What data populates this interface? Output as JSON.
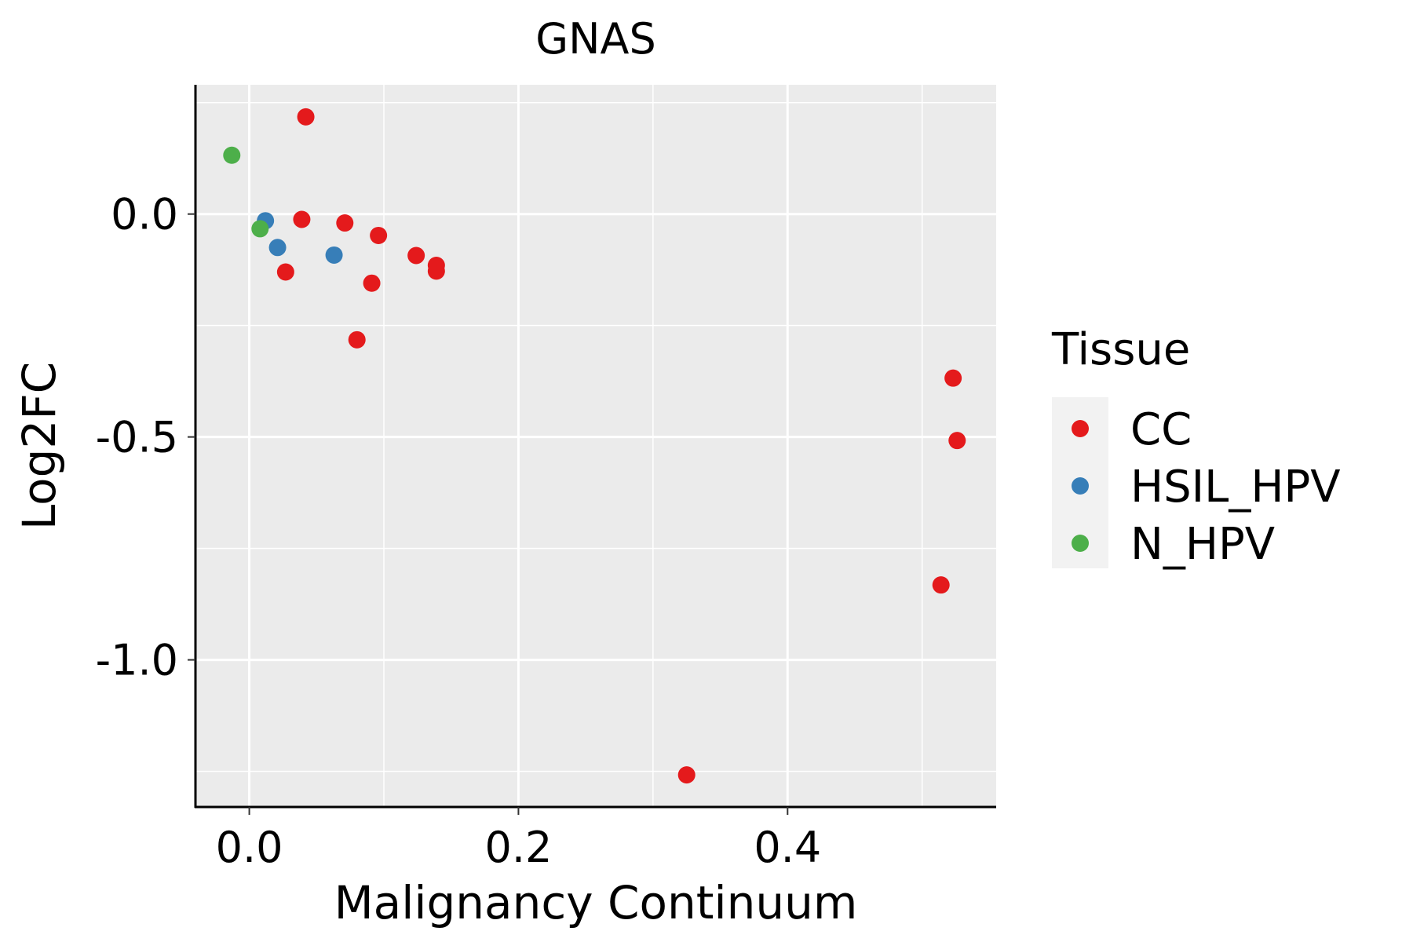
{
  "chart_data": {
    "type": "scatter",
    "title": "GNAS",
    "xlabel": "Malignancy Continuum",
    "ylabel": "Log2FC",
    "xlim": [
      -0.04,
      0.555
    ],
    "ylim": [
      -1.33,
      0.29
    ],
    "xticks": [
      0.0,
      0.2,
      0.4
    ],
    "xtick_labels": [
      "0.0",
      "0.2",
      "0.4"
    ],
    "yticks": [
      0.0,
      -0.5,
      -1.0
    ],
    "ytick_labels": [
      "0.0",
      "-0.5",
      "-1.0"
    ],
    "x_minor_breaks": [
      0.1,
      0.3,
      0.5
    ],
    "y_minor_breaks": [
      0.25,
      -0.25,
      -0.75,
      -1.25
    ],
    "grid": true,
    "legend": {
      "title": "Tissue",
      "position": "right",
      "entries": [
        "CC",
        "HSIL_HPV",
        "N_HPV"
      ]
    },
    "series": [
      {
        "name": "CC",
        "color": "#e41a1c",
        "points": [
          {
            "x": 0.042,
            "y": 0.218
          },
          {
            "x": 0.039,
            "y": -0.012
          },
          {
            "x": 0.071,
            "y": -0.02
          },
          {
            "x": 0.096,
            "y": -0.048
          },
          {
            "x": 0.027,
            "y": -0.13
          },
          {
            "x": 0.124,
            "y": -0.093
          },
          {
            "x": 0.139,
            "y": -0.115
          },
          {
            "x": 0.139,
            "y": -0.128
          },
          {
            "x": 0.091,
            "y": -0.155
          },
          {
            "x": 0.08,
            "y": -0.282
          },
          {
            "x": 0.523,
            "y": -0.368
          },
          {
            "x": 0.526,
            "y": -0.508
          },
          {
            "x": 0.514,
            "y": -0.832
          },
          {
            "x": 0.325,
            "y": -1.258
          }
        ]
      },
      {
        "name": "HSIL_HPV",
        "color": "#377eb8",
        "points": [
          {
            "x": 0.012,
            "y": -0.015
          },
          {
            "x": 0.021,
            "y": -0.075
          },
          {
            "x": 0.063,
            "y": -0.092
          }
        ]
      },
      {
        "name": "N_HPV",
        "color": "#4daf4a",
        "points": [
          {
            "x": -0.013,
            "y": 0.132
          },
          {
            "x": 0.008,
            "y": -0.033
          }
        ]
      }
    ]
  }
}
